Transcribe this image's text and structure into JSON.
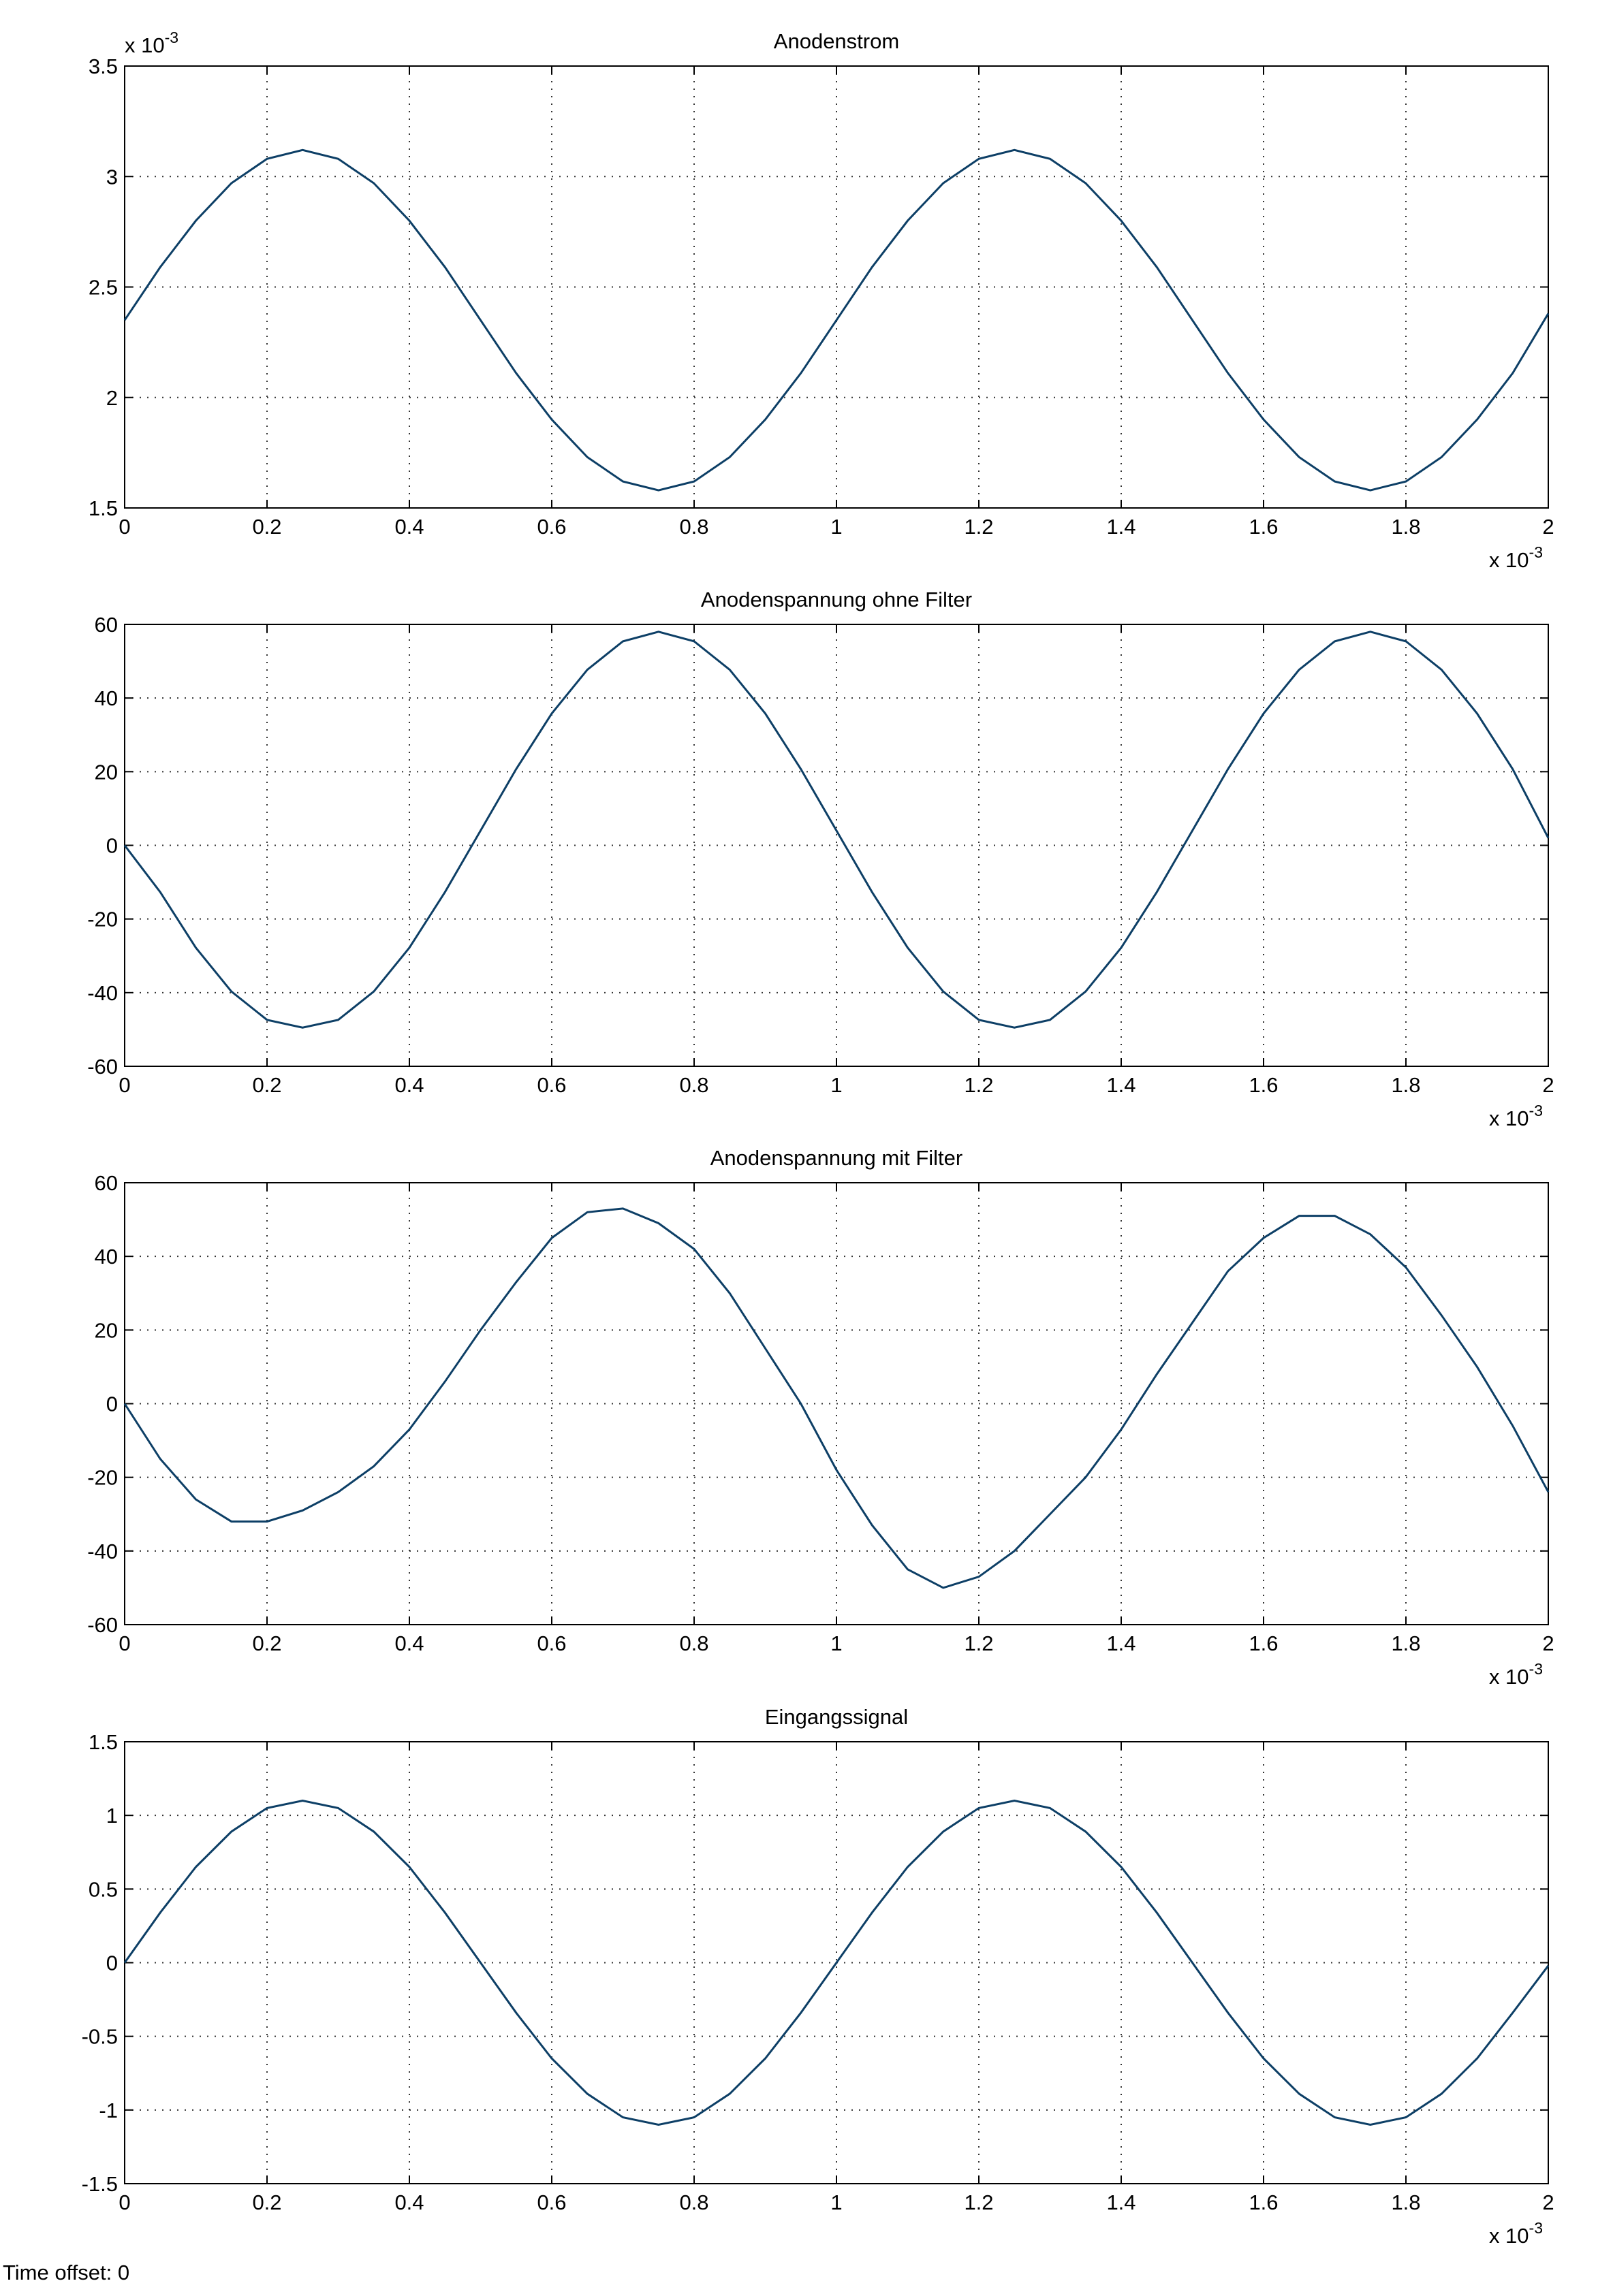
{
  "chart_data": [
    {
      "type": "line",
      "title": "Anodenstrom",
      "color": "#0d3f66",
      "grid": true,
      "x_multiplier": "x 10",
      "x_multiplier_exponent": "-3",
      "y_multiplier": "x 10",
      "y_multiplier_exponent": "-3",
      "xlim": [
        0,
        2
      ],
      "xticks": [
        0,
        0.2,
        0.4,
        0.6,
        0.8,
        1,
        1.2,
        1.4,
        1.6,
        1.8,
        2
      ],
      "ylim": [
        1.5,
        3.5
      ],
      "yticks": [
        1.5,
        2,
        2.5,
        3,
        3.5
      ],
      "x": [
        0,
        0.05,
        0.1,
        0.15,
        0.2,
        0.25,
        0.3,
        0.35,
        0.4,
        0.45,
        0.5,
        0.55,
        0.6,
        0.65,
        0.7,
        0.75,
        0.8,
        0.85,
        0.9,
        0.95,
        1,
        1.05,
        1.1,
        1.15,
        1.2,
        1.25,
        1.3,
        1.35,
        1.4,
        1.45,
        1.5,
        1.55,
        1.6,
        1.65,
        1.7,
        1.75,
        1.8,
        1.85,
        1.9,
        1.95,
        2
      ],
      "values": [
        2.35,
        2.59,
        2.8,
        2.97,
        3.08,
        3.12,
        3.08,
        2.97,
        2.8,
        2.59,
        2.35,
        2.11,
        1.9,
        1.73,
        1.62,
        1.58,
        1.62,
        1.73,
        1.9,
        2.11,
        2.35,
        2.59,
        2.8,
        2.97,
        3.08,
        3.12,
        3.08,
        2.97,
        2.8,
        2.59,
        2.35,
        2.11,
        1.9,
        1.73,
        1.62,
        1.58,
        1.62,
        1.73,
        1.9,
        2.11,
        2.38
      ]
    },
    {
      "type": "line",
      "title": "Anodenspannung ohne Filter",
      "color": "#0d3f66",
      "grid": true,
      "x_multiplier": "x 10",
      "x_multiplier_exponent": "-3",
      "xlim": [
        0,
        2
      ],
      "xticks": [
        0,
        0.2,
        0.4,
        0.6,
        0.8,
        1,
        1.2,
        1.4,
        1.6,
        1.8,
        2
      ],
      "ylim": [
        -60,
        60
      ],
      "yticks": [
        -60,
        -40,
        -20,
        0,
        20,
        40,
        60
      ],
      "x": [
        0,
        0.05,
        0.1,
        0.15,
        0.2,
        0.25,
        0.3,
        0.35,
        0.4,
        0.45,
        0.5,
        0.55,
        0.6,
        0.65,
        0.7,
        0.75,
        0.8,
        0.85,
        0.9,
        0.95,
        1,
        1.05,
        1.1,
        1.15,
        1.2,
        1.25,
        1.3,
        1.35,
        1.4,
        1.45,
        1.5,
        1.55,
        1.6,
        1.65,
        1.7,
        1.75,
        1.8,
        1.85,
        1.9,
        1.95,
        2
      ],
      "values": [
        0,
        -12.7,
        -27.8,
        -39.7,
        -47.4,
        -49.5,
        -47.4,
        -39.7,
        -27.8,
        -12.7,
        4,
        20.7,
        35.8,
        47.7,
        55.4,
        58,
        55.4,
        47.7,
        35.8,
        20.7,
        4,
        -12.7,
        -27.8,
        -39.7,
        -47.4,
        -49.5,
        -47.4,
        -39.7,
        -27.8,
        -12.7,
        4,
        20.7,
        35.8,
        47.7,
        55.4,
        58,
        55.4,
        47.7,
        35.8,
        20.7,
        2
      ]
    },
    {
      "type": "line",
      "title": "Anodenspannung mit Filter",
      "color": "#0d3f66",
      "grid": true,
      "x_multiplier": "x 10",
      "x_multiplier_exponent": "-3",
      "xlim": [
        0,
        2
      ],
      "xticks": [
        0,
        0.2,
        0.4,
        0.6,
        0.8,
        1,
        1.2,
        1.4,
        1.6,
        1.8,
        2
      ],
      "ylim": [
        -60,
        60
      ],
      "yticks": [
        -60,
        -40,
        -20,
        0,
        20,
        40,
        60
      ],
      "x": [
        0,
        0.05,
        0.1,
        0.15,
        0.2,
        0.25,
        0.3,
        0.35,
        0.4,
        0.45,
        0.5,
        0.55,
        0.6,
        0.65,
        0.7,
        0.75,
        0.8,
        0.85,
        0.9,
        0.95,
        1,
        1.05,
        1.1,
        1.15,
        1.2,
        1.25,
        1.3,
        1.35,
        1.4,
        1.45,
        1.5,
        1.55,
        1.6,
        1.65,
        1.7,
        1.75,
        1.8,
        1.85,
        1.9,
        1.95,
        2
      ],
      "values": [
        0,
        -15,
        -26,
        -32,
        -32,
        -29,
        -24,
        -17,
        -7,
        6,
        20,
        33,
        45,
        52,
        53,
        49,
        42,
        30,
        15,
        0,
        -18,
        -33,
        -45,
        -50,
        -47,
        -40,
        -30,
        -20,
        -7,
        8,
        22,
        36,
        45,
        51,
        51,
        46,
        37,
        24,
        10,
        -6,
        -24
      ]
    },
    {
      "type": "line",
      "title": "Eingangssignal",
      "color": "#0d3f66",
      "grid": true,
      "x_multiplier": "x 10",
      "x_multiplier_exponent": "-3",
      "xlim": [
        0,
        2
      ],
      "xticks": [
        0,
        0.2,
        0.4,
        0.6,
        0.8,
        1,
        1.2,
        1.4,
        1.6,
        1.8,
        2
      ],
      "ylim": [
        -1.5,
        1.5
      ],
      "yticks": [
        -1.5,
        -1,
        -0.5,
        0,
        0.5,
        1,
        1.5
      ],
      "x": [
        0,
        0.05,
        0.1,
        0.15,
        0.2,
        0.25,
        0.3,
        0.35,
        0.4,
        0.45,
        0.5,
        0.55,
        0.6,
        0.65,
        0.7,
        0.75,
        0.8,
        0.85,
        0.9,
        0.95,
        1,
        1.05,
        1.1,
        1.15,
        1.2,
        1.25,
        1.3,
        1.35,
        1.4,
        1.45,
        1.5,
        1.55,
        1.6,
        1.65,
        1.7,
        1.75,
        1.8,
        1.85,
        1.9,
        1.95,
        2
      ],
      "values": [
        0,
        0.34,
        0.65,
        0.89,
        1.05,
        1.1,
        1.05,
        0.89,
        0.65,
        0.34,
        0,
        -0.34,
        -0.65,
        -0.89,
        -1.05,
        -1.1,
        -1.05,
        -0.89,
        -0.65,
        -0.34,
        0,
        0.34,
        0.65,
        0.89,
        1.05,
        1.1,
        1.05,
        0.89,
        0.65,
        0.34,
        0,
        -0.34,
        -0.65,
        -0.89,
        -1.05,
        -1.1,
        -1.05,
        -0.89,
        -0.65,
        -0.34,
        -0.02
      ]
    }
  ],
  "footer": "Time offset: 0"
}
